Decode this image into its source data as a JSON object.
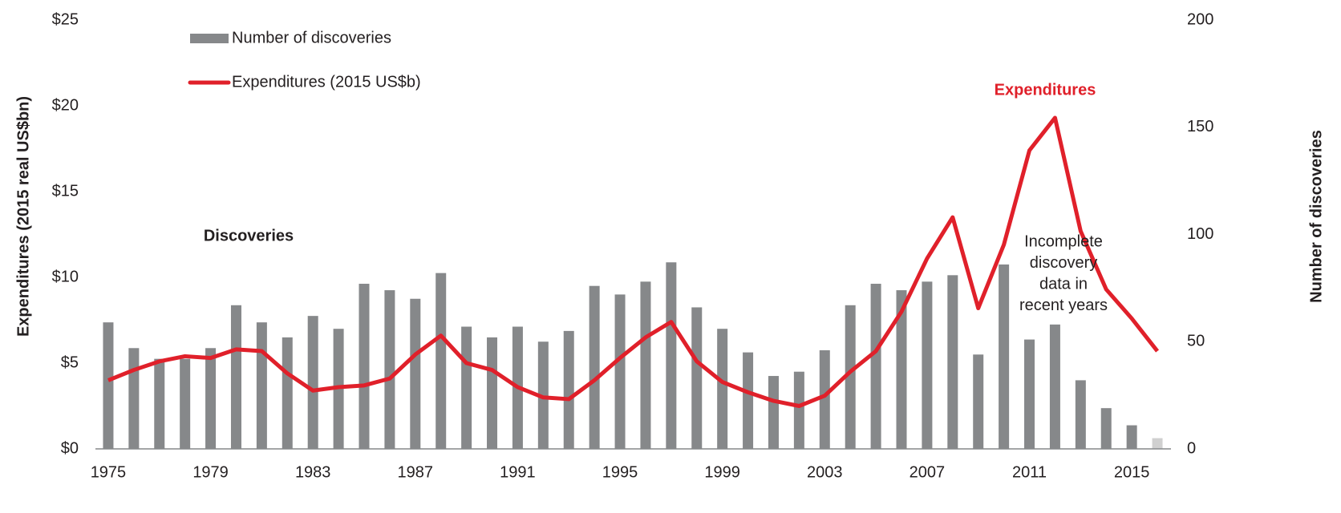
{
  "chart_data": {
    "type": "bar_line",
    "x": [
      1975,
      1976,
      1977,
      1978,
      1979,
      1980,
      1981,
      1982,
      1983,
      1984,
      1985,
      1986,
      1987,
      1988,
      1989,
      1990,
      1991,
      1992,
      1993,
      1994,
      1995,
      1996,
      1997,
      1998,
      1999,
      2000,
      2001,
      2002,
      2003,
      2004,
      2005,
      2006,
      2007,
      2008,
      2009,
      2010,
      2011,
      2012,
      2013,
      2014,
      2015,
      2016
    ],
    "xlim": [
      1974.5,
      2016.5
    ],
    "xticks": [
      1975,
      1979,
      1983,
      1987,
      1991,
      1995,
      1999,
      2003,
      2007,
      2011,
      2015
    ],
    "ylim": [
      0,
      25
    ],
    "yticks": [
      {
        "value": 0,
        "label": "$0"
      },
      {
        "value": 5,
        "label": "$5"
      },
      {
        "value": 10,
        "label": "$10"
      },
      {
        "value": 15,
        "label": "$15"
      },
      {
        "value": 20,
        "label": "$20"
      },
      {
        "value": 25,
        "label": "$25"
      }
    ],
    "y2lim": [
      0,
      200
    ],
    "y2ticks": [
      0,
      50,
      100,
      150,
      200
    ],
    "ylabel": "Expenditures (2015 real US$bn)",
    "y2label": "Number of discoveries",
    "grid": false,
    "series": [
      {
        "name": "Number of discoveries",
        "type": "bar",
        "axis": "y2",
        "color": "#86888a",
        "bar_colors": [
          "#86888a",
          "#86888a",
          "#86888a",
          "#86888a",
          "#86888a",
          "#86888a",
          "#86888a",
          "#86888a",
          "#86888a",
          "#86888a",
          "#86888a",
          "#86888a",
          "#86888a",
          "#86888a",
          "#86888a",
          "#86888a",
          "#86888a",
          "#86888a",
          "#86888a",
          "#86888a",
          "#86888a",
          "#86888a",
          "#86888a",
          "#86888a",
          "#86888a",
          "#86888a",
          "#86888a",
          "#86888a",
          "#86888a",
          "#86888a",
          "#86888a",
          "#86888a",
          "#86888a",
          "#86888a",
          "#86888a",
          "#86888a",
          "#86888a",
          "#86888a",
          "#86888a",
          "#86888a",
          "#86888a",
          "#d0d0d0"
        ],
        "values": [
          59,
          47,
          42,
          42,
          47,
          67,
          59,
          52,
          62,
          56,
          77,
          74,
          70,
          82,
          57,
          52,
          57,
          50,
          55,
          76,
          72,
          78,
          87,
          66,
          56,
          45,
          34,
          36,
          46,
          67,
          77,
          74,
          78,
          81,
          44,
          86,
          51,
          58,
          32,
          19,
          11,
          5
        ]
      },
      {
        "name": "Expenditures (2015 US$b)",
        "type": "line",
        "axis": "y",
        "color": "#e0202a",
        "values": [
          4.0,
          4.6,
          5.1,
          5.4,
          5.3,
          5.8,
          5.7,
          4.4,
          3.4,
          3.6,
          3.7,
          4.1,
          5.5,
          6.6,
          5.0,
          4.6,
          3.6,
          3.0,
          2.9,
          4.0,
          5.3,
          6.5,
          7.4,
          5.1,
          3.9,
          3.3,
          2.8,
          2.5,
          3.1,
          4.5,
          5.7,
          8.0,
          11.1,
          13.5,
          8.2,
          11.9,
          17.4,
          19.3,
          12.7,
          9.3,
          7.6,
          5.7
        ]
      }
    ],
    "annotations": [
      {
        "text": "Discoveries"
      },
      {
        "text": "Expenditures"
      },
      {
        "lines": [
          "Incomplete",
          "discovery",
          "data in",
          "recent years"
        ]
      }
    ]
  }
}
